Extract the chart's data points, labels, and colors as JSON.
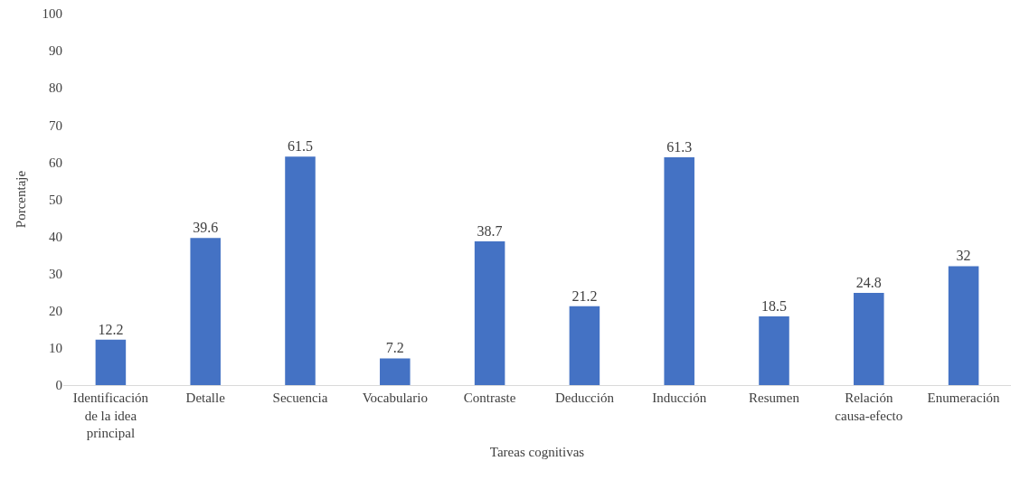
{
  "chart_data": {
    "type": "bar",
    "xlabel": "Tareas cognitivas",
    "ylabel": "Porcentaje",
    "categories": [
      "Identificación de la idea principal",
      "Detalle",
      "Secuencia",
      "Vocabulario",
      "Contraste",
      "Deducción",
      "Inducción",
      "Resumen",
      "Relación causa-efecto",
      "Enumeración"
    ],
    "values": [
      12.2,
      39.6,
      61.5,
      7.2,
      38.7,
      21.2,
      61.3,
      18.5,
      24.8,
      32
    ],
    "color": "#4472c4",
    "ylim": [
      0,
      100
    ],
    "yticks": [
      0,
      10,
      20,
      30,
      40,
      50,
      60,
      70,
      80,
      90,
      100
    ],
    "grid": false,
    "data_labels": true
  }
}
